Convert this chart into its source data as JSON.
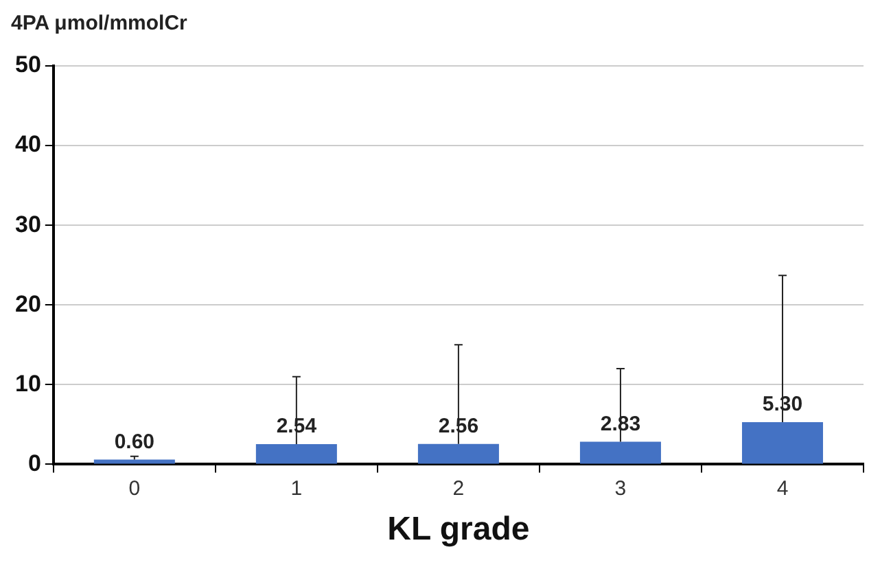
{
  "chart_data": {
    "type": "bar",
    "ylabel": "4PA μmol/mmolCr",
    "xlabel": "KL grade",
    "categories": [
      "0",
      "1",
      "2",
      "3",
      "4"
    ],
    "values": [
      0.6,
      2.54,
      2.56,
      2.83,
      5.3
    ],
    "value_labels": [
      "0.60",
      "2.54",
      "2.56",
      "2.83",
      "5.30"
    ],
    "errors": [
      [
        0.6,
        1.0
      ],
      [
        2.54,
        11
      ],
      [
        2.56,
        15
      ],
      [
        2.83,
        12
      ],
      [
        5.3,
        23.7
      ]
    ],
    "color": "#4472c4",
    "ylim": [
      0,
      50
    ],
    "yticks": [
      0,
      10,
      20,
      30,
      40,
      50
    ],
    "grid": "y",
    "legend": false
  }
}
